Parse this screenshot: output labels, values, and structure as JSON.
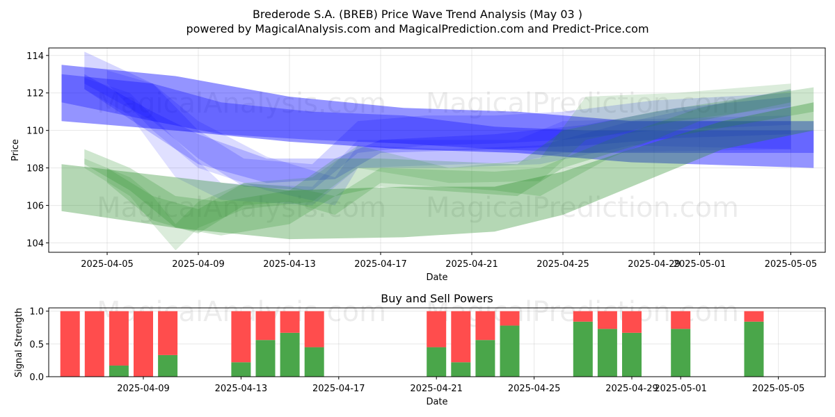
{
  "title_line1": "Brederode S.A. (BREB) Price Wave Trend Analysis (May 03 )",
  "title_line2": "powered by MagicalAnalysis.com and MagicalPrediction.com and Predict-Price.com",
  "watermarks": [
    "MagicalAnalysis.com",
    "MagicalPrediction.com"
  ],
  "colors": {
    "blue": "#0000ff",
    "green": "#228b22",
    "buy": "#4aa64a",
    "sell": "#ff4d4d"
  },
  "chart_data": [
    {
      "type": "area",
      "xlabel": "Date",
      "ylabel": "Price",
      "ylim": [
        103.5,
        114.4
      ],
      "y_ticks": [
        104,
        106,
        108,
        110,
        112,
        114
      ],
      "x_ticks": [
        "2025-04-05",
        "2025-04-09",
        "2025-04-13",
        "2025-04-17",
        "2025-04-21",
        "2025-04-25",
        "2025-04-29",
        "2025-05-01",
        "2025-05-05"
      ],
      "grid": true,
      "series": [
        {
          "color": "blue",
          "upper": [
            [
              "2025-04-03",
              113.5
            ],
            [
              "2025-04-08",
              112.9
            ],
            [
              "2025-04-13",
              111.8
            ],
            [
              "2025-04-18",
              111.2
            ],
            [
              "2025-04-23",
              111.0
            ],
            [
              "2025-04-28",
              110.5
            ],
            [
              "2025-05-06",
              110.5
            ]
          ],
          "lower": [
            [
              "2025-04-03",
              110.5
            ],
            [
              "2025-04-08",
              110.0
            ],
            [
              "2025-04-13",
              109.4
            ],
            [
              "2025-04-18",
              109.0
            ],
            [
              "2025-04-23",
              108.8
            ],
            [
              "2025-04-28",
              108.3
            ],
            [
              "2025-05-06",
              108.0
            ]
          ]
        },
        {
          "color": "blue",
          "upper": [
            [
              "2025-04-03",
              113.0
            ],
            [
              "2025-04-07",
              112.5
            ],
            [
              "2025-04-10",
              111.5
            ],
            [
              "2025-04-14",
              111.0
            ],
            [
              "2025-04-18",
              110.8
            ],
            [
              "2025-04-22",
              110.2
            ],
            [
              "2025-04-26",
              110.0
            ],
            [
              "2025-05-06",
              110.0
            ]
          ],
          "lower": [
            [
              "2025-04-03",
              111.5
            ],
            [
              "2025-04-07",
              110.5
            ],
            [
              "2025-04-10",
              109.8
            ],
            [
              "2025-04-14",
              109.5
            ],
            [
              "2025-04-18",
              109.3
            ],
            [
              "2025-04-22",
              109.0
            ],
            [
              "2025-04-26",
              108.8
            ],
            [
              "2025-05-06",
              108.8
            ]
          ]
        },
        {
          "color": "blue",
          "upper": [
            [
              "2025-04-04",
              114.2
            ],
            [
              "2025-04-07",
              112.5
            ],
            [
              "2025-04-09",
              110.0
            ],
            [
              "2025-04-11",
              108.5
            ],
            [
              "2025-04-14",
              108.2
            ],
            [
              "2025-04-16",
              110.5
            ],
            [
              "2025-04-19",
              110.8
            ],
            [
              "2025-04-22",
              110.8
            ],
            [
              "2025-04-25",
              111.0
            ],
            [
              "2025-04-29",
              111.6
            ],
            [
              "2025-05-05",
              112.0
            ]
          ],
          "lower": [
            [
              "2025-04-04",
              112.5
            ],
            [
              "2025-04-07",
              110.5
            ],
            [
              "2025-04-09",
              108.5
            ],
            [
              "2025-04-11",
              107.0
            ],
            [
              "2025-04-14",
              106.8
            ],
            [
              "2025-04-16",
              108.8
            ],
            [
              "2025-04-19",
              109.2
            ],
            [
              "2025-04-22",
              109.3
            ],
            [
              "2025-04-25",
              109.5
            ],
            [
              "2025-04-29",
              110.0
            ],
            [
              "2025-05-05",
              110.3
            ]
          ]
        },
        {
          "color": "blue",
          "upper": [
            [
              "2025-04-04",
              113.0
            ],
            [
              "2025-04-07",
              111.0
            ],
            [
              "2025-04-09",
              109.8
            ],
            [
              "2025-04-12",
              108.5
            ],
            [
              "2025-04-15",
              108.5
            ],
            [
              "2025-04-17",
              109.5
            ],
            [
              "2025-04-22",
              109.8
            ],
            [
              "2025-04-26",
              110.3
            ],
            [
              "2025-04-30",
              111.2
            ],
            [
              "2025-05-05",
              111.8
            ]
          ],
          "lower": [
            [
              "2025-04-04",
              112.2
            ],
            [
              "2025-04-07",
              109.8
            ],
            [
              "2025-04-09",
              108.2
            ],
            [
              "2025-04-12",
              107.2
            ],
            [
              "2025-04-15",
              107.4
            ],
            [
              "2025-04-17",
              108.8
            ],
            [
              "2025-04-22",
              109.0
            ],
            [
              "2025-04-26",
              109.2
            ],
            [
              "2025-04-30",
              109.6
            ],
            [
              "2025-05-05",
              109.8
            ]
          ]
        },
        {
          "color": "blue",
          "upper": [
            [
              "2025-04-05",
              113.2
            ],
            [
              "2025-04-07",
              112.5
            ],
            [
              "2025-04-09",
              110.5
            ],
            [
              "2025-04-12",
              108.6
            ],
            [
              "2025-04-15",
              107.5
            ],
            [
              "2025-04-16",
              109.2
            ],
            [
              "2025-04-20",
              109.0
            ],
            [
              "2025-04-24",
              109.2
            ],
            [
              "2025-04-28",
              110.5
            ],
            [
              "2025-05-05",
              112.2
            ]
          ],
          "lower": [
            [
              "2025-04-05",
              112.5
            ],
            [
              "2025-04-07",
              110.0
            ],
            [
              "2025-04-09",
              108.0
            ],
            [
              "2025-04-12",
              106.8
            ],
            [
              "2025-04-15",
              106.0
            ],
            [
              "2025-04-16",
              108.0
            ],
            [
              "2025-04-20",
              108.0
            ],
            [
              "2025-04-24",
              108.2
            ],
            [
              "2025-04-28",
              109.2
            ],
            [
              "2025-05-05",
              109.0
            ]
          ]
        },
        {
          "color": "blue",
          "upper": [
            [
              "2025-04-04",
              112.8
            ],
            [
              "2025-04-06",
              112.0
            ],
            [
              "2025-04-08",
              109.5
            ],
            [
              "2025-04-10",
              107.2
            ],
            [
              "2025-04-14",
              107.0
            ],
            [
              "2025-04-16",
              109.5
            ],
            [
              "2025-04-23",
              109.5
            ],
            [
              "2025-04-25",
              110.5
            ],
            [
              "2025-05-05",
              110.8
            ]
          ],
          "lower": [
            [
              "2025-04-04",
              112.2
            ],
            [
              "2025-04-06",
              110.8
            ],
            [
              "2025-04-08",
              107.5
            ],
            [
              "2025-04-10",
              106.3
            ],
            [
              "2025-04-14",
              106.0
            ],
            [
              "2025-04-16",
              108.0
            ],
            [
              "2025-04-23",
              108.3
            ],
            [
              "2025-04-25",
              108.8
            ],
            [
              "2025-05-05",
              109.0
            ]
          ]
        },
        {
          "color": "green",
          "upper": [
            [
              "2025-04-03",
              108.2
            ],
            [
              "2025-04-08",
              107.5
            ],
            [
              "2025-04-13",
              106.8
            ],
            [
              "2025-04-18",
              107.0
            ],
            [
              "2025-04-22",
              107.0
            ],
            [
              "2025-04-25",
              107.8
            ],
            [
              "2025-04-28",
              109.0
            ],
            [
              "2025-05-02",
              110.5
            ],
            [
              "2025-05-06",
              111.5
            ]
          ],
          "lower": [
            [
              "2025-04-03",
              105.7
            ],
            [
              "2025-04-08",
              104.8
            ],
            [
              "2025-04-13",
              104.2
            ],
            [
              "2025-04-18",
              104.3
            ],
            [
              "2025-04-22",
              104.6
            ],
            [
              "2025-04-25",
              105.5
            ],
            [
              "2025-04-28",
              107.0
            ],
            [
              "2025-05-02",
              109.0
            ],
            [
              "2025-05-06",
              110.0
            ]
          ]
        },
        {
          "color": "green",
          "upper": [
            [
              "2025-04-04",
              109.0
            ],
            [
              "2025-04-06",
              108.0
            ],
            [
              "2025-04-08",
              106.5
            ],
            [
              "2025-04-10",
              106.2
            ],
            [
              "2025-04-13",
              106.8
            ],
            [
              "2025-04-15",
              108.5
            ],
            [
              "2025-04-17",
              108.5
            ],
            [
              "2025-04-23",
              108.2
            ],
            [
              "2025-04-25",
              110.0
            ],
            [
              "2025-04-29",
              111.0
            ],
            [
              "2025-05-06",
              112.3
            ]
          ],
          "lower": [
            [
              "2025-04-04",
              108.2
            ],
            [
              "2025-04-06",
              106.8
            ],
            [
              "2025-04-08",
              104.8
            ],
            [
              "2025-04-10",
              104.4
            ],
            [
              "2025-04-13",
              105.0
            ],
            [
              "2025-04-15",
              106.5
            ],
            [
              "2025-04-17",
              107.0
            ],
            [
              "2025-04-23",
              106.5
            ],
            [
              "2025-04-25",
              108.0
            ],
            [
              "2025-04-29",
              109.5
            ],
            [
              "2025-05-06",
              111.0
            ]
          ]
        },
        {
          "color": "green",
          "upper": [
            [
              "2025-04-04",
              108.5
            ],
            [
              "2025-04-06",
              107.5
            ],
            [
              "2025-04-07",
              106.5
            ],
            [
              "2025-04-08",
              105.0
            ],
            [
              "2025-04-09",
              106.2
            ],
            [
              "2025-04-11",
              107.2
            ],
            [
              "2025-04-14",
              107.5
            ],
            [
              "2025-04-16",
              109.2
            ],
            [
              "2025-04-20",
              108.0
            ],
            [
              "2025-04-24",
              108.5
            ],
            [
              "2025-04-26",
              111.8
            ],
            [
              "2025-04-30",
              112.0
            ],
            [
              "2025-05-05",
              112.5
            ]
          ],
          "lower": [
            [
              "2025-04-04",
              108.0
            ],
            [
              "2025-04-06",
              106.5
            ],
            [
              "2025-04-07",
              105.0
            ],
            [
              "2025-04-08",
              103.6
            ],
            [
              "2025-04-09",
              104.8
            ],
            [
              "2025-04-11",
              105.8
            ],
            [
              "2025-04-14",
              106.2
            ],
            [
              "2025-04-16",
              108.0
            ],
            [
              "2025-04-20",
              107.2
            ],
            [
              "2025-04-24",
              107.3
            ],
            [
              "2025-04-26",
              109.5
            ],
            [
              "2025-04-30",
              110.5
            ],
            [
              "2025-05-05",
              111.3
            ]
          ]
        },
        {
          "color": "green",
          "upper": [
            [
              "2025-04-05",
              108.0
            ],
            [
              "2025-04-07",
              106.5
            ],
            [
              "2025-04-09",
              105.8
            ],
            [
              "2025-04-11",
              107.2
            ],
            [
              "2025-04-13",
              107.0
            ],
            [
              "2025-04-15",
              106.5
            ],
            [
              "2025-04-17",
              108.0
            ],
            [
              "2025-04-22",
              107.8
            ],
            [
              "2025-04-24",
              108.0
            ],
            [
              "2025-04-27",
              109.5
            ],
            [
              "2025-05-01",
              111.2
            ],
            [
              "2025-05-05",
              112.2
            ]
          ],
          "lower": [
            [
              "2025-04-05",
              107.2
            ],
            [
              "2025-04-07",
              105.2
            ],
            [
              "2025-04-09",
              104.5
            ],
            [
              "2025-04-11",
              106.0
            ],
            [
              "2025-04-13",
              106.2
            ],
            [
              "2025-04-15",
              105.5
            ],
            [
              "2025-04-17",
              107.2
            ],
            [
              "2025-04-22",
              106.8
            ],
            [
              "2025-04-24",
              106.5
            ],
            [
              "2025-04-27",
              108.5
            ],
            [
              "2025-05-01",
              110.5
            ],
            [
              "2025-05-05",
              111.5
            ]
          ]
        }
      ]
    },
    {
      "type": "bar",
      "title": "Buy and Sell Powers",
      "xlabel": "Date",
      "ylabel": "Signal Strength",
      "ylim": [
        0,
        1.05
      ],
      "y_ticks": [
        "0.0",
        "0.5",
        "1.0"
      ],
      "x_ticks": [
        "2025-04-09",
        "2025-04-13",
        "2025-04-17",
        "2025-04-21",
        "2025-04-25",
        "2025-04-29",
        "2025-05-01",
        "2025-05-05"
      ],
      "grid": true,
      "categories": [
        "2025-04-06",
        "2025-04-07",
        "2025-04-08",
        "2025-04-09",
        "2025-04-10",
        "2025-04-13",
        "2025-04-14",
        "2025-04-15",
        "2025-04-16",
        "2025-04-21",
        "2025-04-22",
        "2025-04-23",
        "2025-04-24",
        "2025-04-27",
        "2025-04-28",
        "2025-04-29",
        "2025-05-01",
        "2025-05-04"
      ],
      "series": [
        {
          "name": "buy",
          "values": [
            0.0,
            0.0,
            0.17,
            0.0,
            0.33,
            0.22,
            0.56,
            0.67,
            0.45,
            0.45,
            0.22,
            0.56,
            0.78,
            0.84,
            0.73,
            0.67,
            0.73,
            0.84
          ]
        },
        {
          "name": "sell",
          "values": [
            1.0,
            1.0,
            0.83,
            1.0,
            0.67,
            0.78,
            0.44,
            0.33,
            0.55,
            0.55,
            0.78,
            0.44,
            0.22,
            0.16,
            0.27,
            0.33,
            0.27,
            0.16
          ]
        }
      ]
    }
  ]
}
